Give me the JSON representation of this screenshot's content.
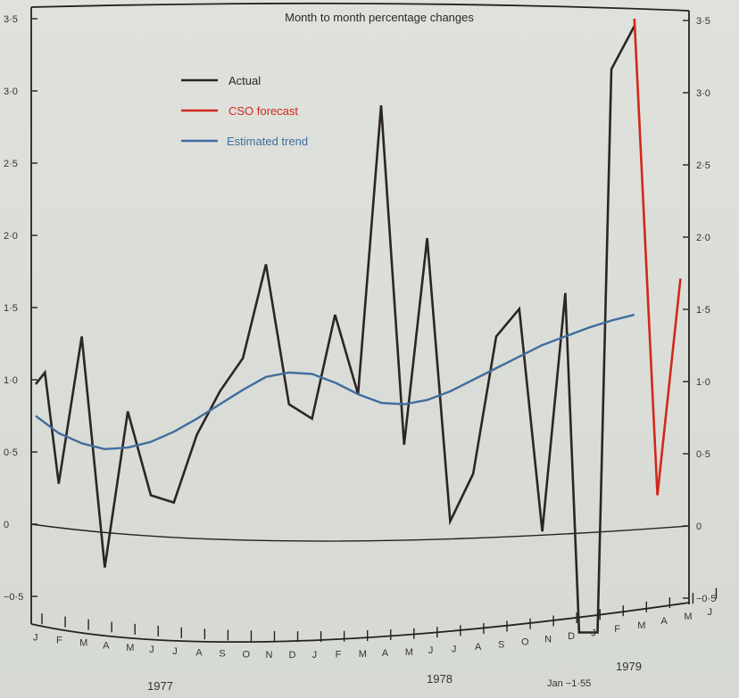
{
  "chart_data": {
    "type": "line",
    "title": "Month to month percentage changes",
    "ylim": [
      -0.7,
      3.6
    ],
    "y_ticks_left": [
      "3·5",
      "3·0",
      "2·5",
      "2·0",
      "1·5",
      "1·0",
      "0·5",
      "0",
      "−0·5"
    ],
    "y_ticks_right": [
      "3·5",
      "3·0",
      "2·5",
      "2·0",
      "1·5",
      "1·0",
      "0·5",
      "0",
      "−0·5"
    ],
    "y_tick_values": [
      3.5,
      3.0,
      2.5,
      2.0,
      1.5,
      1.0,
      0.5,
      0,
      -0.5
    ],
    "months": [
      "J",
      "F",
      "M",
      "A",
      "M",
      "J",
      "J",
      "A",
      "S",
      "O",
      "N",
      "D",
      "J",
      "F",
      "M",
      "A",
      "M",
      "J",
      "J",
      "A",
      "S",
      "O",
      "N",
      "D",
      "J",
      "F",
      "M",
      "A",
      "M",
      "J"
    ],
    "years": [
      "1977",
      "1978",
      "1979"
    ],
    "annotation": "Jan −1·55",
    "legend": [
      {
        "label": "Actual",
        "color": "#2b2623"
      },
      {
        "label": "CSO forecast",
        "color": "#d2281c"
      },
      {
        "label": "Estimated trend",
        "color": "#3f6e9e"
      }
    ],
    "series": [
      {
        "name": "Actual",
        "color": "#2b2623",
        "x": [
          0,
          0.4,
          1,
          2,
          3,
          4,
          5,
          6,
          7,
          8,
          9,
          10,
          11,
          12,
          13,
          14,
          15,
          16,
          17,
          18,
          19,
          20,
          21,
          22,
          23,
          23.6,
          24.4,
          25,
          26
        ],
        "values": [
          0.97,
          1.05,
          0.28,
          1.3,
          -0.3,
          0.78,
          0.2,
          0.15,
          0.62,
          0.92,
          1.15,
          1.8,
          0.83,
          0.73,
          1.45,
          0.9,
          2.9,
          0.55,
          1.98,
          0.02,
          0.35,
          1.3,
          1.49,
          -0.05,
          1.6,
          -1.55,
          -1.55,
          3.15,
          3.45
        ]
      },
      {
        "name": "CSO forecast",
        "color": "#d2281c",
        "x": [
          26,
          27,
          28
        ],
        "values": [
          3.5,
          0.2,
          1.7
        ]
      },
      {
        "name": "Estimated trend",
        "color": "#3f6e9e",
        "x": [
          0,
          1,
          2,
          3,
          4,
          5,
          6,
          7,
          8,
          9,
          10,
          11,
          12,
          13,
          14,
          15,
          16,
          17,
          18,
          19,
          20,
          21,
          22,
          23,
          24,
          25,
          26
        ],
        "values": [
          0.75,
          0.63,
          0.56,
          0.52,
          0.53,
          0.57,
          0.64,
          0.73,
          0.83,
          0.93,
          1.02,
          1.05,
          1.04,
          0.98,
          0.9,
          0.84,
          0.83,
          0.86,
          0.92,
          1.0,
          1.08,
          1.16,
          1.24,
          1.3,
          1.36,
          1.41,
          1.45
        ]
      }
    ]
  }
}
